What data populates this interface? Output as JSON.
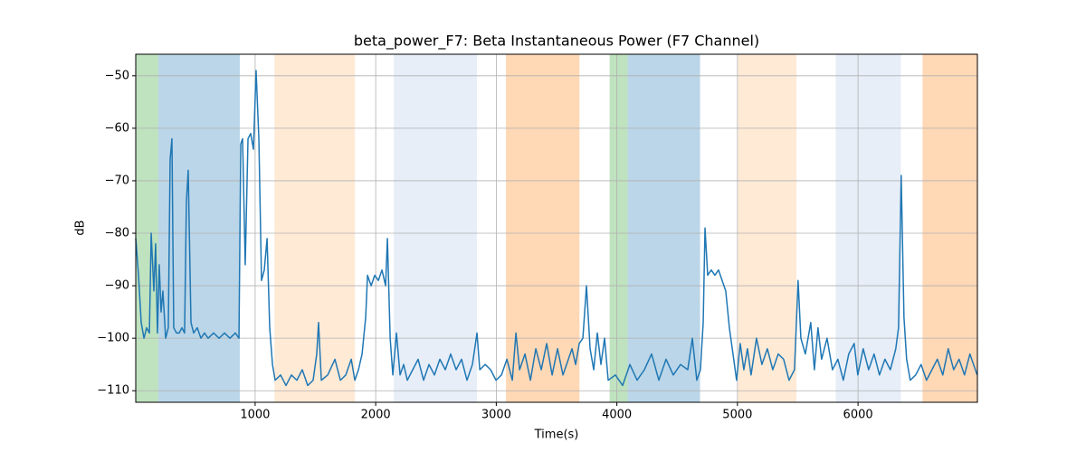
{
  "chart_data": {
    "type": "line",
    "title": "beta_power_F7: Beta Instantaneous Power (F7 Channel)",
    "x_label": "Time(s)",
    "y_label": "dB",
    "xlim": [
      10,
      6990
    ],
    "ylim": [
      -112.2,
      -45.9
    ],
    "xticks": [
      1000,
      2000,
      3000,
      4000,
      5000,
      6000
    ],
    "yticks": [
      {
        "value": -110,
        "label": "−110"
      },
      {
        "value": -100,
        "label": "−100"
      },
      {
        "value": -90,
        "label": "−90"
      },
      {
        "value": -80,
        "label": "−80"
      },
      {
        "value": -70,
        "label": "−70"
      },
      {
        "value": -60,
        "label": "−60"
      },
      {
        "value": -50,
        "label": "−50"
      }
    ],
    "grid": true,
    "color": "#1f77b4",
    "spans": [
      {
        "start": 10,
        "end": 197,
        "color": "#2ca02c4d"
      },
      {
        "start": 197,
        "end": 873,
        "color": "#1f77b44d"
      },
      {
        "start": 1160,
        "end": 1828,
        "color": "#ffbb784d"
      },
      {
        "start": 2150,
        "end": 2840,
        "color": "#aec7e84d"
      },
      {
        "start": 3080,
        "end": 3690,
        "color": "#ff7f0e4d"
      },
      {
        "start": 3940,
        "end": 4090,
        "color": "#2ca02c4d"
      },
      {
        "start": 4090,
        "end": 4690,
        "color": "#1f77b44d"
      },
      {
        "start": 5005,
        "end": 5490,
        "color": "#ffbb784d"
      },
      {
        "start": 5815,
        "end": 6355,
        "color": "#aec7e84d"
      },
      {
        "start": 6535,
        "end": 6990,
        "color": "#ff7f0e4d"
      }
    ],
    "x": [
      10,
      33,
      55,
      78,
      100,
      123,
      138,
      160,
      175,
      190,
      205,
      220,
      235,
      258,
      280,
      295,
      310,
      325,
      348,
      370,
      393,
      415,
      430,
      445,
      468,
      490,
      520,
      550,
      580,
      610,
      656,
      701,
      746,
      791,
      836,
      866,
      881,
      896,
      918,
      941,
      963,
      986,
      1008,
      1031,
      1053,
      1076,
      1099,
      1121,
      1144,
      1166,
      1211,
      1256,
      1301,
      1346,
      1391,
      1436,
      1481,
      1511,
      1526,
      1549,
      1602,
      1662,
      1707,
      1752,
      1797,
      1827,
      1857,
      1887,
      1917,
      1932,
      1962,
      1992,
      2022,
      2052,
      2082,
      2097,
      2120,
      2142,
      2172,
      2202,
      2232,
      2262,
      2307,
      2352,
      2397,
      2442,
      2487,
      2532,
      2577,
      2622,
      2667,
      2712,
      2757,
      2802,
      2840,
      2863,
      2908,
      2953,
      2998,
      3043,
      3088,
      3133,
      3163,
      3193,
      3238,
      3283,
      3328,
      3373,
      3418,
      3463,
      3508,
      3553,
      3598,
      3628,
      3658,
      3688,
      3718,
      3748,
      3778,
      3808,
      3838,
      3868,
      3898,
      3928,
      3988,
      4048,
      4108,
      4168,
      4228,
      4288,
      4348,
      4408,
      4468,
      4528,
      4588,
      4626,
      4663,
      4693,
      4716,
      4731,
      4753,
      4783,
      4813,
      4843,
      4873,
      4903,
      4933,
      4963,
      4993,
      5023,
      5053,
      5083,
      5113,
      5158,
      5203,
      5248,
      5293,
      5338,
      5383,
      5428,
      5473,
      5503,
      5526,
      5563,
      5608,
      5638,
      5668,
      5698,
      5743,
      5788,
      5833,
      5878,
      5923,
      5968,
      5998,
      6043,
      6088,
      6133,
      6178,
      6223,
      6268,
      6313,
      6336,
      6358,
      6381,
      6403,
      6433,
      6478,
      6523,
      6568,
      6613,
      6658,
      6703,
      6748,
      6793,
      6838,
      6883,
      6928,
      6958,
      6988
    ],
    "values": [
      -81,
      -88,
      -97,
      -100,
      -98,
      -99,
      -80,
      -91,
      -82,
      -99,
      -86,
      -95,
      -91,
      -100,
      -98,
      -66,
      -62,
      -98,
      -99,
      -99,
      -98,
      -99,
      -74,
      -68,
      -97,
      -99,
      -98,
      -100,
      -99,
      -100,
      -99,
      -100,
      -99,
      -100,
      -99,
      -100,
      -63,
      -62,
      -86,
      -62,
      -61,
      -64,
      -49,
      -62,
      -89,
      -87,
      -81,
      -98,
      -105,
      -108,
      -107,
      -109,
      -107,
      -108,
      -106,
      -109,
      -108,
      -103,
      -97,
      -108,
      -107,
      -104,
      -108,
      -107,
      -104,
      -108,
      -106,
      -103,
      -96,
      -88,
      -90,
      -88,
      -89,
      -87,
      -90,
      -81,
      -100,
      -107,
      -99,
      -107,
      -105,
      -108,
      -106,
      -104,
      -108,
      -105,
      -107,
      -104,
      -106,
      -103,
      -106,
      -104,
      -108,
      -105,
      -99,
      -106,
      -105,
      -106,
      -108,
      -107,
      -104,
      -108,
      -99,
      -106,
      -103,
      -108,
      -102,
      -106,
      -101,
      -107,
      -102,
      -107,
      -104,
      -102,
      -105,
      -101,
      -100,
      -90,
      -102,
      -106,
      -99,
      -105,
      -100,
      -108,
      -107,
      -109,
      -105,
      -108,
      -106,
      -103,
      -108,
      -104,
      -107,
      -105,
      -106,
      -100,
      -108,
      -106,
      -97,
      -79,
      -88,
      -87,
      -88,
      -87,
      -89,
      -91,
      -98,
      -103,
      -108,
      -101,
      -106,
      -102,
      -107,
      -100,
      -105,
      -102,
      -106,
      -103,
      -104,
      -108,
      -106,
      -89,
      -100,
      -103,
      -97,
      -106,
      -98,
      -104,
      -100,
      -106,
      -104,
      -108,
      -103,
      -101,
      -107,
      -102,
      -106,
      -103,
      -107,
      -104,
      -106,
      -102,
      -98,
      -69,
      -96,
      -104,
      -108,
      -107,
      -105,
      -108,
      -106,
      -104,
      -107,
      -102,
      -106,
      -104,
      -107,
      -103,
      -105,
      -107
    ]
  }
}
